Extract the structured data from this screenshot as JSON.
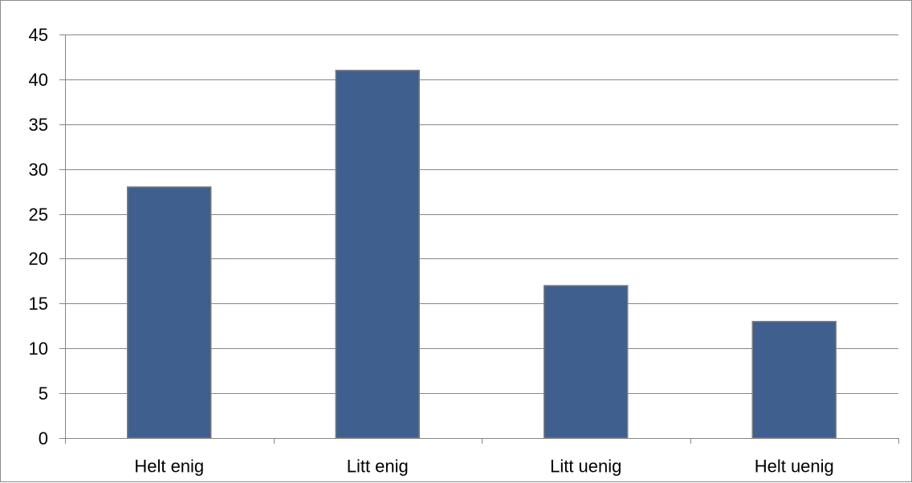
{
  "chart_data": {
    "type": "bar",
    "title": "",
    "xlabel": "",
    "ylabel": "",
    "categories": [
      "Helt enig",
      "Litt enig",
      "Litt uenig",
      "Helt uenig"
    ],
    "values": [
      28,
      41,
      17,
      13
    ],
    "ylim": [
      0,
      45
    ],
    "yticks": [
      0,
      5,
      10,
      15,
      20,
      25,
      30,
      35,
      40,
      45
    ],
    "grid": true,
    "legend": "none",
    "bar_color": "#3f5f8e"
  }
}
